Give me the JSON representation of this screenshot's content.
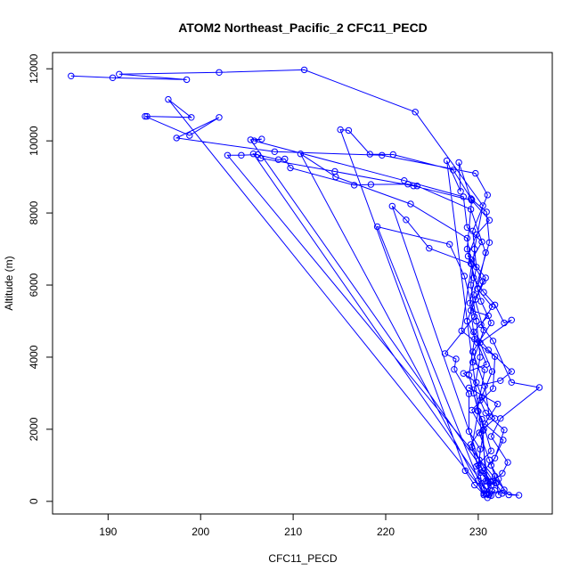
{
  "chart_data": {
    "type": "line",
    "title": "ATOM2 Northeast_Pacific_2 CFC11_PECD",
    "xlabel": "CFC11_PECD",
    "ylabel": "Altitude (m)",
    "xlim": [
      184,
      238
    ],
    "ylim": [
      -350,
      12450
    ],
    "xticks": [
      190,
      200,
      210,
      220,
      230
    ],
    "yticks": [
      0,
      2000,
      4000,
      6000,
      8000,
      10000,
      12000
    ],
    "xtick_labels": [
      "190",
      "200",
      "210",
      "220",
      "230"
    ],
    "ytick_labels": [
      "0",
      "2000",
      "4000",
      "6000",
      "8000",
      "10000",
      "12000"
    ],
    "grid": false,
    "series": [
      {
        "color": "#0000ff",
        "marker": "open-circle",
        "points": [
          [
            186,
            11800
          ],
          [
            190.5,
            11750
          ],
          [
            198.5,
            11700
          ],
          [
            191.2,
            11850
          ],
          [
            202,
            11900
          ],
          [
            211.2,
            11970
          ],
          [
            223.2,
            10800
          ],
          [
            230.5,
            8200
          ],
          [
            229.6,
            7000
          ],
          [
            229.2,
            6000
          ],
          [
            229.8,
            5000
          ],
          [
            230.2,
            4000
          ],
          [
            229.5,
            3000
          ],
          [
            230.6,
            2000
          ],
          [
            230.0,
            1000
          ],
          [
            230.4,
            500
          ],
          [
            230.8,
            200
          ],
          [
            196.5,
            11150
          ],
          [
            199,
            10650
          ],
          [
            194.2,
            10680
          ],
          [
            194,
            10680
          ],
          [
            198.8,
            10150
          ],
          [
            202,
            10650
          ],
          [
            197.4,
            10080
          ],
          [
            208,
            9700
          ],
          [
            219.6,
            9600
          ],
          [
            229.7,
            9100
          ],
          [
            231.0,
            8500
          ],
          [
            229.4,
            7500
          ],
          [
            229.8,
            6500
          ],
          [
            229.1,
            5500
          ],
          [
            229.6,
            4500
          ],
          [
            229.0,
            3500
          ],
          [
            230.0,
            2500
          ],
          [
            229.3,
            1500
          ],
          [
            230.2,
            800
          ],
          [
            231.4,
            550
          ],
          [
            205.4,
            10030
          ],
          [
            206.6,
            10050
          ],
          [
            205.8,
            10000
          ],
          [
            222.0,
            8900
          ],
          [
            228.4,
            8450
          ],
          [
            228.8,
            7600
          ],
          [
            230.4,
            7200
          ],
          [
            229.3,
            6700
          ],
          [
            230.5,
            6100
          ],
          [
            229.7,
            5600
          ],
          [
            228.8,
            5000
          ],
          [
            229.9,
            4400
          ],
          [
            230.9,
            3800
          ],
          [
            228.4,
            3550
          ],
          [
            229.8,
            3300
          ],
          [
            230.4,
            2900
          ],
          [
            231.8,
            2300
          ],
          [
            230.1,
            1900
          ],
          [
            231.2,
            1150
          ],
          [
            231.8,
            700
          ],
          [
            231.9,
            500
          ],
          [
            232.6,
            220
          ],
          [
            234.4,
            170
          ],
          [
            233.3,
            180
          ],
          [
            202.9,
            9600
          ],
          [
            204.4,
            9600
          ],
          [
            206.2,
            9620
          ],
          [
            206.5,
            9520
          ],
          [
            214.5,
            9150
          ],
          [
            223.0,
            8750
          ],
          [
            229.3,
            8350
          ],
          [
            231.2,
            7800
          ],
          [
            229.8,
            7400
          ],
          [
            228.9,
            6800
          ],
          [
            230.8,
            6200
          ],
          [
            229.2,
            5300
          ],
          [
            231.1,
            5150
          ],
          [
            229.5,
            4700
          ],
          [
            231.1,
            4200
          ],
          [
            233.6,
            3600
          ],
          [
            232.4,
            3350
          ],
          [
            229.0,
            3150
          ],
          [
            232.1,
            2700
          ],
          [
            230.7,
            2150
          ],
          [
            232.7,
            1700
          ],
          [
            231.4,
            1000
          ],
          [
            232.2,
            620
          ],
          [
            232.8,
            320
          ],
          [
            231.2,
            220
          ],
          [
            205.7,
            9640
          ],
          [
            208.4,
            9480
          ],
          [
            209.1,
            9500
          ],
          [
            209.7,
            9250
          ],
          [
            216.6,
            8770
          ],
          [
            218.4,
            8790
          ],
          [
            222.4,
            8800
          ],
          [
            223.4,
            8750
          ],
          [
            229.2,
            8100
          ],
          [
            230.8,
            6900
          ],
          [
            229.9,
            5900
          ],
          [
            231.5,
            5400
          ],
          [
            230.3,
            4900
          ],
          [
            231.6,
            4450
          ],
          [
            233.6,
            3300
          ],
          [
            236.6,
            3160
          ],
          [
            232.4,
            2300
          ],
          [
            231.4,
            1800
          ],
          [
            233.2,
            1080
          ],
          [
            232.6,
            780
          ],
          [
            231.6,
            560
          ],
          [
            230.6,
            180
          ],
          [
            210.8,
            9640
          ],
          [
            214.6,
            9000
          ],
          [
            222.7,
            8250
          ],
          [
            228.8,
            7300
          ],
          [
            229.5,
            6200
          ],
          [
            230.6,
            5800
          ],
          [
            231.8,
            5450
          ],
          [
            232.8,
            4950
          ],
          [
            233.6,
            5030
          ],
          [
            230.2,
            4400
          ],
          [
            231.5,
            3600
          ],
          [
            230.2,
            2800
          ],
          [
            230.8,
            2450
          ],
          [
            232.8,
            1980
          ],
          [
            231.8,
            1200
          ],
          [
            230.6,
            850
          ],
          [
            231.4,
            440
          ],
          [
            231.0,
            100
          ],
          [
            229.6,
            450
          ],
          [
            228.6,
            850
          ],
          [
            215.1,
            10310
          ],
          [
            216.0,
            10290
          ],
          [
            218.3,
            9630
          ],
          [
            220.8,
            9620
          ],
          [
            227.3,
            9190
          ],
          [
            229.3,
            8370
          ],
          [
            228.8,
            7000
          ],
          [
            229.2,
            6600
          ],
          [
            230.3,
            5550
          ],
          [
            231.4,
            4950
          ],
          [
            229.4,
            4150
          ],
          [
            230.7,
            3200
          ],
          [
            231.2,
            2350
          ],
          [
            229.2,
            1580
          ],
          [
            230.1,
            1150
          ],
          [
            231.6,
            560
          ],
          [
            230.6,
            220
          ],
          [
            219.1,
            7620
          ],
          [
            226.9,
            7130
          ],
          [
            228.5,
            6250
          ],
          [
            229.6,
            5120
          ],
          [
            226.4,
            4100
          ],
          [
            227.6,
            3950
          ],
          [
            227.4,
            3660
          ],
          [
            229.0,
            2980
          ],
          [
            229.0,
            1940
          ],
          [
            230.2,
            1450
          ],
          [
            230.0,
            580
          ],
          [
            231.4,
            160
          ],
          [
            220.7,
            8190
          ],
          [
            222.2,
            7810
          ],
          [
            224.7,
            7020
          ],
          [
            229.3,
            6580
          ],
          [
            228.2,
            4730
          ],
          [
            231.8,
            4020
          ],
          [
            231.6,
            3130
          ],
          [
            229.3,
            2530
          ],
          [
            230.5,
            1960
          ],
          [
            230.8,
            560
          ],
          [
            231.8,
            300
          ],
          [
            231.2,
            180
          ],
          [
            226.6,
            9450
          ],
          [
            228.1,
            8600
          ],
          [
            227.9,
            9400
          ],
          [
            229.2,
            8400
          ],
          [
            230.9,
            8030
          ],
          [
            231.2,
            7180
          ],
          [
            229.5,
            5730
          ],
          [
            230.6,
            4750
          ],
          [
            229.4,
            3860
          ],
          [
            230.7,
            3650
          ],
          [
            229.9,
            2520
          ],
          [
            230.4,
            2280
          ],
          [
            231.4,
            1400
          ],
          [
            229.8,
            970
          ],
          [
            231.0,
            560
          ],
          [
            232.0,
            520
          ],
          [
            232.2,
            180
          ]
        ]
      }
    ]
  }
}
